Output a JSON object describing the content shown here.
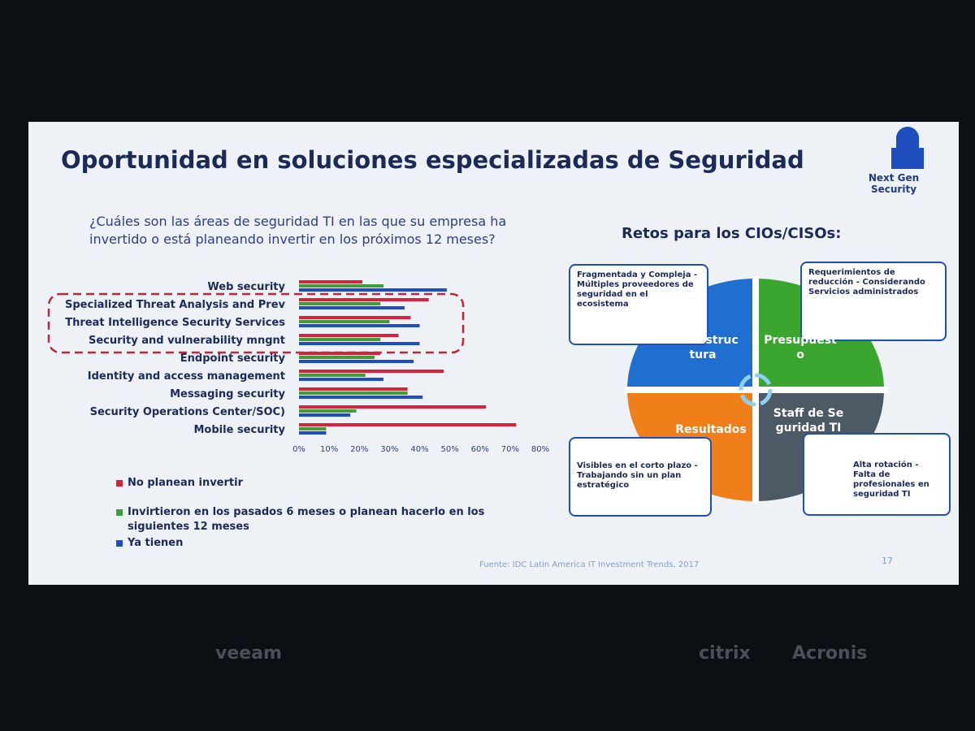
{
  "slide": {
    "title": "Oportunidad en soluciones especializadas de Seguridad",
    "logo_text": "Next Gen Security",
    "source": "Fuente: IDC Latin America IT Investment Trends, 2017",
    "page_number": "17"
  },
  "chart_data": {
    "type": "bar",
    "orientation": "horizontal",
    "title": "¿Cuáles son las áreas de seguridad TI en las que su empresa ha invertido o está planeando invertir en los próximos 12 meses?",
    "categories": [
      "Web security",
      "Specialized Threat Analysis and Prev",
      "Threat Intelligence Security Services",
      "Security and vulnerability mngnt",
      "Endpoint security",
      "Identity and access management",
      "Messaging security",
      "Security Operations Center/SOC)",
      "Mobile security"
    ],
    "series": [
      {
        "name": "No planean invertir",
        "color": "#d8213b",
        "values": [
          21,
          43,
          37,
          33,
          27,
          48,
          36,
          62,
          72
        ]
      },
      {
        "name": "Invirtieron en los pasados 6 meses o planean hacerlo en los siguientes 12 meses",
        "color": "#3c9d3a",
        "values": [
          28,
          27,
          30,
          27,
          25,
          22,
          36,
          19,
          9
        ]
      },
      {
        "name": "Ya tienen",
        "color": "#1f4fbf",
        "values": [
          49,
          35,
          40,
          40,
          38,
          28,
          41,
          17,
          9
        ]
      }
    ],
    "xlim": [
      0,
      80
    ],
    "xticks": [
      {
        "value": 0,
        "label": "0%"
      },
      {
        "value": 10,
        "label": "10%"
      },
      {
        "value": 20,
        "label": "20%"
      },
      {
        "value": 30,
        "label": "30%"
      },
      {
        "value": 40,
        "label": "40%"
      },
      {
        "value": 50,
        "label": "50%"
      },
      {
        "value": 60,
        "label": "60%"
      },
      {
        "value": 70,
        "label": "70%"
      },
      {
        "value": 80,
        "label": "80%"
      }
    ],
    "grid": false,
    "legend": "bottom"
  },
  "diagram": {
    "title": "Retos para los CIOs/CISOs:",
    "quadrants": [
      "Infraestructura",
      "Presupuesto",
      "Resultados",
      "Staff de Seguridad TI"
    ],
    "callouts": [
      "Fragmentada y Compleja - Múltiples proveedores de seguridad en el ecosistema",
      "Requerimientos de reducción - Considerando Servicios administrados",
      "Visibles en el corto plazo - Trabajando sin un plan estratégico",
      "Alta rotación - Falta de profesionales en seguridad TI"
    ]
  },
  "sponsors": [
    "veeam",
    "citrix",
    "Acronis"
  ]
}
